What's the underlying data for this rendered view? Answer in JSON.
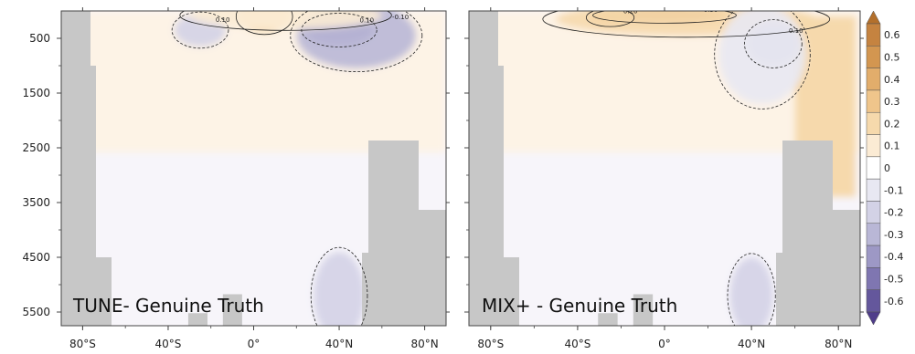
{
  "chart_data": [
    {
      "type": "heatmap",
      "subtype": "filled-contour-section",
      "panel_label": "TUNE- Genuine Truth",
      "x_ticks": [
        "80°S",
        "40°S",
        "0°",
        "40°N",
        "80°N"
      ],
      "x_tick_values": [
        -80,
        -40,
        0,
        40,
        80
      ],
      "xlim": [
        -90,
        90
      ],
      "y_ticks": [
        "500",
        "1500",
        "2500",
        "3500",
        "4500",
        "5500"
      ],
      "y_tick_values": [
        500,
        1500,
        2500,
        3500,
        4500,
        5500
      ],
      "ylim": [
        5750,
        0
      ],
      "contour_labels": [
        "0.10",
        "-0.10",
        "0.10"
      ],
      "features": [
        {
          "kind": "neg",
          "x": 40,
          "y": 350,
          "rx": 16,
          "ry": 280,
          "level": -0.5
        },
        {
          "kind": "neg",
          "x": 48,
          "y": 450,
          "rx": 28,
          "ry": 600,
          "level": -0.3
        },
        {
          "kind": "neg",
          "x": -25,
          "y": 350,
          "rx": 12,
          "ry": 300,
          "level": -0.2
        },
        {
          "kind": "pos",
          "x": 5,
          "y": 100,
          "rx": 12,
          "ry": 300,
          "level": 0.2
        },
        {
          "kind": "pos",
          "x": 15,
          "y": 80,
          "rx": 45,
          "ry": 250,
          "level": 0.1
        },
        {
          "kind": "neg",
          "x": 40,
          "y": 5200,
          "rx": 12,
          "ry": 800,
          "level": -0.2
        }
      ]
    },
    {
      "type": "heatmap",
      "subtype": "filled-contour-section",
      "panel_label": "MIX+ - Genuine Truth",
      "x_ticks": [
        "80°S",
        "40°S",
        "0°",
        "40°N",
        "80°N"
      ],
      "x_tick_values": [
        -80,
        -40,
        0,
        40,
        80
      ],
      "xlim": [
        -90,
        90
      ],
      "y_ticks": [
        "500",
        "1500",
        "2500",
        "3500",
        "4500",
        "5500"
      ],
      "y_tick_values": [
        500,
        1500,
        2500,
        3500,
        4500,
        5500
      ],
      "ylim": [
        5750,
        0
      ],
      "contour_labels": [
        "0.30",
        "0.20",
        "0.10",
        "0.10"
      ],
      "features": [
        {
          "kind": "pos",
          "x": 0,
          "y": 80,
          "rx": 30,
          "ry": 130,
          "level": 0.6
        },
        {
          "kind": "pos",
          "x": -25,
          "y": 120,
          "rx": 10,
          "ry": 150,
          "level": 0.4
        },
        {
          "kind": "pos",
          "x": 10,
          "y": 150,
          "rx": 60,
          "ry": 300,
          "level": 0.2
        },
        {
          "kind": "neg",
          "x": 50,
          "y": 600,
          "rx": 12,
          "ry": 400,
          "level": -0.3
        },
        {
          "kind": "neg",
          "x": 45,
          "y": 800,
          "rx": 20,
          "ry": 900,
          "level": -0.1
        },
        {
          "kind": "neg",
          "x": 40,
          "y": 5200,
          "rx": 10,
          "ry": 700,
          "level": -0.2
        }
      ],
      "side_block": {
        "x0": 60,
        "x1": 88,
        "y0": 100,
        "y1": 3400,
        "level": 0.2
      }
    }
  ],
  "colorbar": {
    "labels": [
      "0.6",
      "0.5",
      "0.4",
      "0.3",
      "0.2",
      "0.1",
      "0",
      "-0.1",
      "-0.2",
      "-0.3",
      "-0.4",
      "-0.5",
      "-0.6"
    ],
    "colors": [
      "#c58340",
      "#d39650",
      "#e2ad6b",
      "#efc58b",
      "#f6d9ac",
      "#fbebd4",
      "#ffffff",
      "#e8e8f2",
      "#d3d2e6",
      "#b9b7d6",
      "#9d98c5",
      "#7f76b1",
      "#64579c"
    ],
    "top_arrow_color": "#b3702c",
    "bottom_arrow_color": "#4f3d8a"
  },
  "colors": {
    "land": "#c7c7c7",
    "background_pos": "#fdf3e6",
    "background_neutral": "#f7f5fa"
  }
}
